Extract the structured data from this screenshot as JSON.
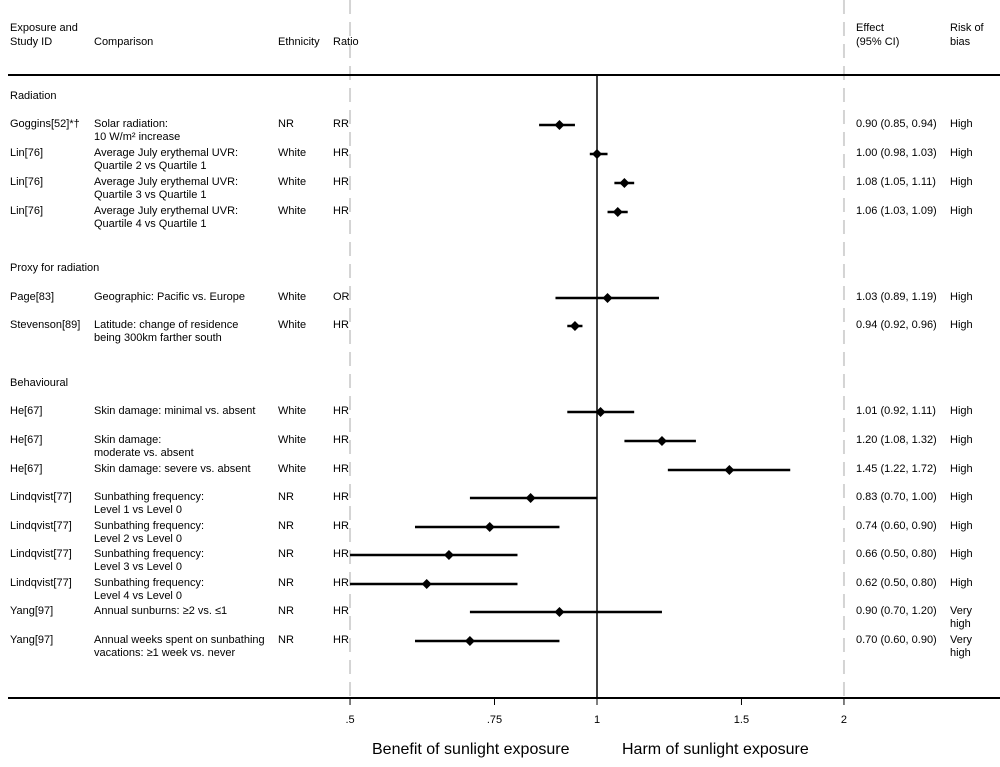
{
  "chart_data": {
    "type": "forest",
    "headers": {
      "study": "Exposure and\nStudy ID",
      "comparison": "Comparison",
      "ethnicity": "Ethnicity",
      "ratio": "Ratio",
      "effect": "Effect\n(95% CI)",
      "risk": "Risk of\nbias"
    },
    "x_scale": "log",
    "xlim": [
      0.5,
      2
    ],
    "null_line": 1,
    "x_ticks": [
      0.5,
      0.75,
      1,
      1.5,
      2
    ],
    "x_tick_labels": [
      ".5",
      ".75",
      "1",
      "1.5",
      "2"
    ],
    "dashed_reference_lines": [
      0.5,
      2
    ],
    "left_label": "Benefit of sunlight exposure",
    "right_label": "Harm of sunlight exposure",
    "rows": [
      {
        "group": "Radiation"
      },
      {
        "study": "Goggins[52]*†",
        "comparison": "Solar radiation:\n10 W/m² increase",
        "ethnicity": "NR",
        "ratio": "RR",
        "estimate": 0.9,
        "lower": 0.85,
        "upper": 0.94,
        "effect_text": "0.90 (0.85, 0.94)",
        "risk": "High"
      },
      {
        "study": "Lin[76]",
        "comparison": "Average July erythemal UVR:\nQuartile 2 vs Quartile 1",
        "ethnicity": "White",
        "ratio": "HR",
        "estimate": 1.0,
        "lower": 0.98,
        "upper": 1.03,
        "effect_text": "1.00 (0.98, 1.03)",
        "risk": "High"
      },
      {
        "study": "Lin[76]",
        "comparison": "Average July erythemal UVR:\nQuartile 3 vs Quartile 1",
        "ethnicity": "White",
        "ratio": "HR",
        "estimate": 1.08,
        "lower": 1.05,
        "upper": 1.11,
        "effect_text": "1.08 (1.05, 1.11)",
        "risk": "High"
      },
      {
        "study": "Lin[76]",
        "comparison": "Average July erythemal UVR:\nQuartile 4 vs Quartile 1",
        "ethnicity": "White",
        "ratio": "HR",
        "estimate": 1.06,
        "lower": 1.03,
        "upper": 1.09,
        "effect_text": "1.06 (1.03, 1.09)",
        "risk": "High"
      },
      {
        "group": "Proxy for radiation"
      },
      {
        "study": "Page[83]",
        "comparison": "Geographic: Pacific vs. Europe",
        "ethnicity": "White",
        "ratio": "OR",
        "estimate": 1.03,
        "lower": 0.89,
        "upper": 1.19,
        "effect_text": "1.03 (0.89, 1.19)",
        "risk": "High"
      },
      {
        "study": "Stevenson[89]",
        "comparison": "Latitude: change of residence\nbeing 300km farther south",
        "ethnicity": "White",
        "ratio": "HR",
        "estimate": 0.94,
        "lower": 0.92,
        "upper": 0.96,
        "effect_text": "0.94 (0.92, 0.96)",
        "risk": "High"
      },
      {
        "group": "Behavioural"
      },
      {
        "study": "He[67]",
        "comparison": "Skin damage: minimal vs. absent",
        "ethnicity": "White",
        "ratio": "HR",
        "estimate": 1.01,
        "lower": 0.92,
        "upper": 1.11,
        "effect_text": "1.01 (0.92, 1.11)",
        "risk": "High"
      },
      {
        "study": "He[67]",
        "comparison": "Skin damage:\nmoderate vs. absent",
        "ethnicity": "White",
        "ratio": "HR",
        "estimate": 1.2,
        "lower": 1.08,
        "upper": 1.32,
        "effect_text": "1.20 (1.08, 1.32)",
        "risk": "High"
      },
      {
        "study": "He[67]",
        "comparison": "Skin damage: severe vs. absent",
        "ethnicity": "White",
        "ratio": "HR",
        "estimate": 1.45,
        "lower": 1.22,
        "upper": 1.72,
        "effect_text": "1.45 (1.22, 1.72)",
        "risk": "High"
      },
      {
        "study": "Lindqvist[77]",
        "comparison": "Sunbathing frequency:\nLevel 1 vs Level 0",
        "ethnicity": "NR",
        "ratio": "HR",
        "estimate": 0.83,
        "lower": 0.7,
        "upper": 1.0,
        "effect_text": "0.83 (0.70, 1.00)",
        "risk": "High"
      },
      {
        "study": "Lindqvist[77]",
        "comparison": "Sunbathing frequency:\nLevel 2 vs Level 0",
        "ethnicity": "NR",
        "ratio": "HR",
        "estimate": 0.74,
        "lower": 0.6,
        "upper": 0.9,
        "effect_text": "0.74 (0.60, 0.90)",
        "risk": "High"
      },
      {
        "study": "Lindqvist[77]",
        "comparison": "Sunbathing frequency:\nLevel 3 vs Level 0",
        "ethnicity": "NR",
        "ratio": "HR",
        "estimate": 0.66,
        "lower": 0.5,
        "upper": 0.8,
        "effect_text": "0.66 (0.50, 0.80)",
        "risk": "High"
      },
      {
        "study": "Lindqvist[77]",
        "comparison": "Sunbathing frequency:\nLevel 4 vs Level 0",
        "ethnicity": "NR",
        "ratio": "HR",
        "estimate": 0.62,
        "lower": 0.5,
        "upper": 0.8,
        "effect_text": "0.62 (0.50, 0.80)",
        "risk": "High"
      },
      {
        "study": "Yang[97]",
        "comparison": "Annual sunburns: ≥2 vs. ≤1",
        "ethnicity": "NR",
        "ratio": "HR",
        "estimate": 0.9,
        "lower": 0.7,
        "upper": 1.2,
        "effect_text": "0.90 (0.70, 1.20)",
        "risk": "Very\nhigh"
      },
      {
        "study": "Yang[97]",
        "comparison": "Annual weeks spent on sunbathing\nvacations: ≥1 week vs. never",
        "ethnicity": "NR",
        "ratio": "HR",
        "estimate": 0.7,
        "lower": 0.6,
        "upper": 0.9,
        "effect_text": "0.70 (0.60, 0.90)",
        "risk": "Very\nhigh"
      }
    ]
  }
}
